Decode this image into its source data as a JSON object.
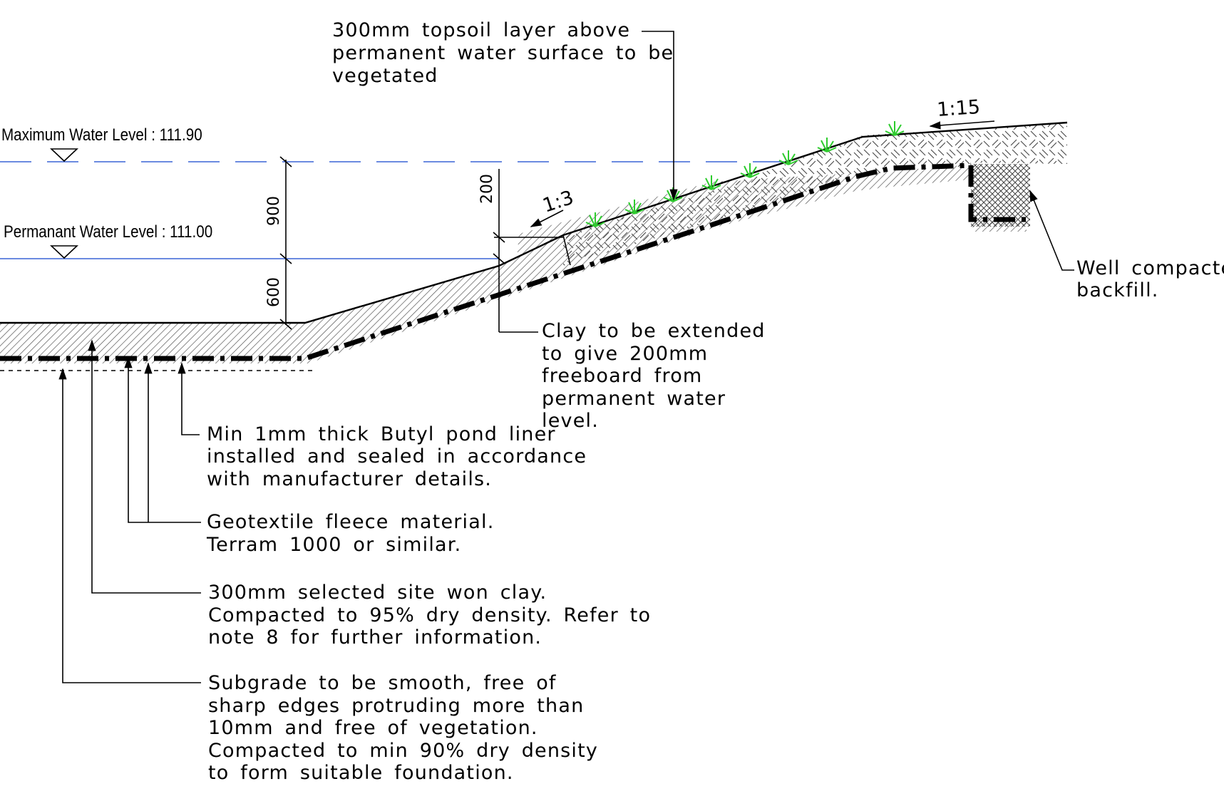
{
  "levels": {
    "max_water": "Maximum Water Level : 111.90",
    "permanent_water": "Permanant Water Level : 111.00"
  },
  "dimensions": {
    "d900": "900",
    "d600": "600",
    "d200": "200"
  },
  "slopes": {
    "s1_3": "1:3",
    "s1_15": "1:15"
  },
  "notes": {
    "topsoil": [
      "300mm topsoil layer above",
      "permanent water surface to be",
      "vegetated"
    ],
    "backfill": [
      "Well compacted",
      "backfill."
    ],
    "clay_extend": [
      "Clay to be extended",
      "to give 200mm",
      "freeboard from",
      "permanent water",
      "level."
    ],
    "butyl": [
      "Min 1mm thick Butyl pond liner",
      "installed and sealed in accordance",
      "with manufacturer details."
    ],
    "geotextile": [
      "Geotextile fleece material.",
      "Terram 1000 or similar."
    ],
    "clay_selected": [
      "300mm selected site won clay.",
      "Compacted to 95% dry density. Refer to",
      "note 8 for further information."
    ],
    "subgrade": [
      "Subgrade to be smooth, free of",
      "sharp edges protruding more than",
      "10mm and free of vegetation.",
      "Compacted to min 90% dry density",
      "to form suitable foundation."
    ]
  },
  "colors": {
    "water_line": "#3a63d6",
    "vegetation": "#2ecc2e",
    "linework": "#000000"
  }
}
